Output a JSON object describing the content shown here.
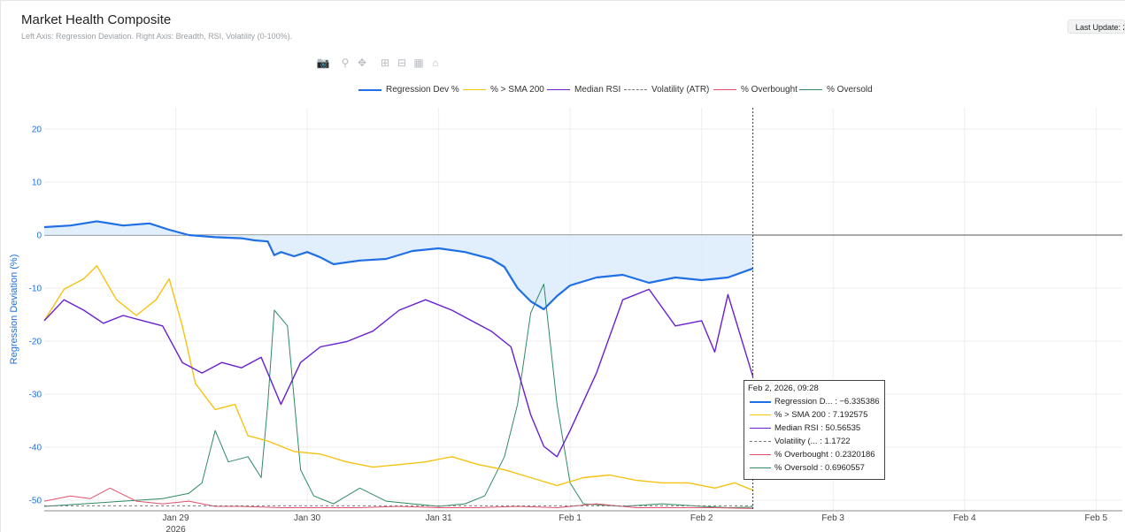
{
  "header": {
    "title": "Market Health Composite",
    "subtitle": "Left Axis: Regression Deviation. Right Axis: Breadth, RSI, Volatility (0-100%).",
    "last_update": "Last Update: 2"
  },
  "modebar": {
    "icons": [
      "camera-icon",
      "zoom-icon",
      "pan-icon",
      "zoom-in-icon",
      "zoom-out-icon",
      "autoscale-icon",
      "home-icon"
    ]
  },
  "colors": {
    "regression": "#1f6fe5",
    "sma200": "#f5c211",
    "rsi": "#6a1fd1",
    "volatility": "#777777",
    "overbought": "#e0526c",
    "oversold": "#2e8b62",
    "fill": "#dcebfb"
  },
  "chart_data": {
    "type": "line",
    "title": "Market Health Composite",
    "ylabel": "Regression Deviation (%)",
    "ylim": [
      -52,
      24
    ],
    "y2lim": [
      0,
      100
    ],
    "y_ticks": [
      "20",
      "10",
      "0",
      "-10",
      "-20",
      "-30",
      "-40",
      "-50"
    ],
    "y_tick_values": [
      20,
      10,
      0,
      -10,
      -20,
      -30,
      -40,
      -50
    ],
    "x_ticks": [
      {
        "label": "Jan 29",
        "sub": "2026",
        "day": 29
      },
      {
        "label": "Jan 30",
        "sub": "",
        "day": 30
      },
      {
        "label": "Jan 31",
        "sub": "",
        "day": 31
      },
      {
        "label": "Feb 1",
        "sub": "",
        "day": 32
      },
      {
        "label": "Feb 2",
        "sub": "",
        "day": 33
      },
      {
        "label": "Feb 3",
        "sub": "",
        "day": 34
      },
      {
        "label": "Feb 4",
        "sub": "",
        "day": 35
      },
      {
        "label": "Feb 5",
        "sub": "",
        "day": 36
      }
    ],
    "xlim_days": [
      28.0,
      36.2
    ],
    "hover_day": 33.39,
    "grid": true,
    "legend_position": "top",
    "series": [
      {
        "name": "Regression Dev %",
        "key": "regression",
        "axis": "y",
        "dash": "solid",
        "width": 2.2,
        "x": [
          28.0,
          28.2,
          28.4,
          28.6,
          28.8,
          28.95,
          29.1,
          29.3,
          29.5,
          29.6,
          29.7,
          29.75,
          29.8,
          29.9,
          30.0,
          30.1,
          30.2,
          30.4,
          30.6,
          30.8,
          31.0,
          31.2,
          31.4,
          31.5,
          31.6,
          31.7,
          31.8,
          31.9,
          32.0,
          32.2,
          32.4,
          32.6,
          32.8,
          33.0,
          33.2,
          33.39
        ],
        "y": [
          1.5,
          1.8,
          2.6,
          1.8,
          2.2,
          1.0,
          0.0,
          -0.4,
          -0.6,
          -1.0,
          -1.2,
          -3.8,
          -3.2,
          -4.0,
          -3.2,
          -4.2,
          -5.5,
          -4.8,
          -4.5,
          -3.0,
          -2.5,
          -3.2,
          -4.5,
          -6.0,
          -10.0,
          -12.5,
          -14.0,
          -11.5,
          -9.5,
          -8.0,
          -7.5,
          -9.0,
          -8.0,
          -8.5,
          -8.0,
          -6.3
        ]
      },
      {
        "name": "% > SMA 200",
        "key": "sma200",
        "axis": "y2",
        "dash": "solid",
        "width": 1.4,
        "x": [
          28.0,
          28.15,
          28.3,
          28.4,
          28.55,
          28.7,
          28.85,
          28.95,
          29.05,
          29.15,
          29.3,
          29.45,
          29.55,
          29.7,
          29.9,
          30.1,
          30.3,
          30.5,
          30.7,
          30.9,
          31.1,
          31.3,
          31.5,
          31.7,
          31.9,
          32.1,
          32.3,
          32.5,
          32.7,
          32.9,
          33.1,
          33.25,
          33.39
        ],
        "y": [
          72,
          84,
          88,
          93,
          80,
          74,
          80,
          88,
          70,
          48,
          38,
          40,
          28,
          26,
          22,
          21,
          18,
          16,
          17,
          18,
          20,
          17,
          15,
          12,
          9,
          12,
          13,
          11,
          10,
          10,
          8,
          10,
          7.2
        ]
      },
      {
        "name": "Median RSI",
        "key": "rsi",
        "axis": "y2",
        "dash": "solid",
        "width": 1.4,
        "x": [
          28.0,
          28.15,
          28.3,
          28.45,
          28.6,
          28.75,
          28.9,
          29.05,
          29.2,
          29.35,
          29.5,
          29.65,
          29.8,
          29.95,
          30.1,
          30.3,
          30.5,
          30.7,
          30.9,
          31.1,
          31.25,
          31.4,
          31.55,
          31.7,
          31.8,
          31.9,
          32.0,
          32.2,
          32.4,
          32.6,
          32.8,
          33.0,
          33.1,
          33.2,
          33.39
        ],
        "y": [
          72,
          80,
          76,
          71,
          74,
          72,
          70,
          56,
          52,
          56,
          54,
          58,
          40,
          56,
          62,
          64,
          68,
          76,
          80,
          76,
          72,
          68,
          62,
          36,
          24,
          20,
          30,
          52,
          80,
          84,
          70,
          72,
          60,
          82,
          50.6
        ]
      },
      {
        "name": "Volatility (ATR)",
        "key": "volatility",
        "axis": "y2",
        "dash": "dash",
        "width": 1.0,
        "x": [
          28.0,
          33.39
        ],
        "y": [
          1.2,
          1.2
        ]
      },
      {
        "name": "% Overbought",
        "key": "overbought",
        "axis": "y2",
        "dash": "solid",
        "width": 1.0,
        "x": [
          28.0,
          28.2,
          28.35,
          28.5,
          28.7,
          28.9,
          29.1,
          29.3,
          29.5,
          29.8,
          30.1,
          30.4,
          30.7,
          31.0,
          31.3,
          31.6,
          31.9,
          32.2,
          32.5,
          32.8,
          33.1,
          33.39
        ],
        "y": [
          3,
          5,
          4,
          8,
          3,
          2,
          3,
          1,
          1,
          0.5,
          0.5,
          0.5,
          1,
          0.5,
          0.5,
          1,
          0.5,
          2,
          0.5,
          0.5,
          0.5,
          0.2
        ]
      },
      {
        "name": "% Oversold",
        "key": "oversold",
        "axis": "y2",
        "dash": "solid",
        "width": 1.0,
        "x": [
          28.0,
          28.3,
          28.6,
          28.9,
          29.1,
          29.2,
          29.3,
          29.4,
          29.55,
          29.65,
          29.7,
          29.75,
          29.85,
          29.95,
          30.05,
          30.2,
          30.4,
          30.6,
          30.8,
          31.0,
          31.2,
          31.35,
          31.5,
          31.6,
          31.7,
          31.8,
          31.9,
          32.0,
          32.1,
          32.4,
          32.7,
          33.0,
          33.2,
          33.39
        ],
        "y": [
          1,
          2,
          3,
          4,
          6,
          10,
          30,
          18,
          20,
          12,
          40,
          76,
          70,
          15,
          5,
          2,
          8,
          3,
          2,
          1,
          2,
          5,
          20,
          40,
          75,
          86,
          40,
          10,
          2,
          1,
          2,
          1,
          0.5,
          0.7
        ]
      }
    ],
    "tooltip": {
      "title": "Feb 2, 2026, 09:28",
      "rows": [
        {
          "key": "regression",
          "text": "Regression D... : −6.335386"
        },
        {
          "key": "sma200",
          "text": "% > SMA 200 : 7.192575"
        },
        {
          "key": "rsi",
          "text": "Median RSI : 50.56535"
        },
        {
          "key": "volatility",
          "text": "Volatility (... : 1.1722"
        },
        {
          "key": "overbought",
          "text": "% Overbought : 0.2320186"
        },
        {
          "key": "oversold",
          "text": "% Oversold : 0.6960557"
        }
      ]
    }
  }
}
